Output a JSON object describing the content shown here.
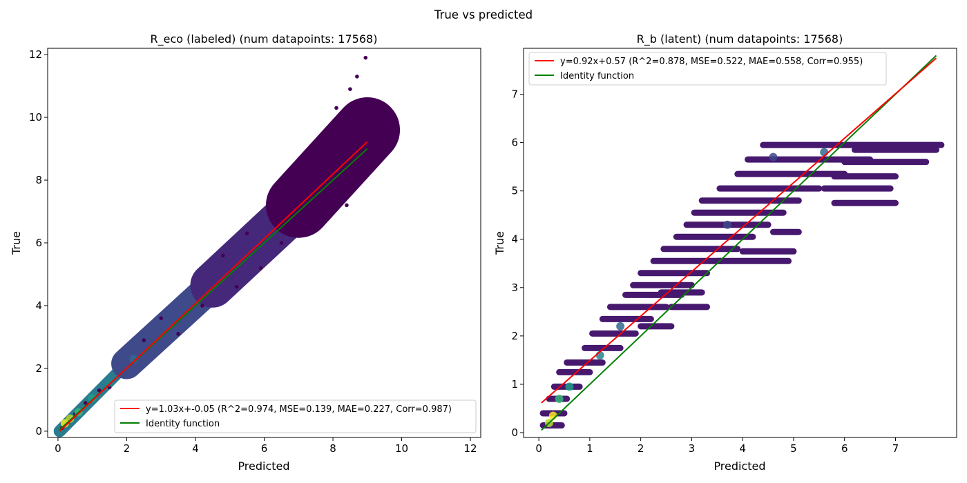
{
  "figure": {
    "suptitle": "True vs predicted"
  },
  "colors": {
    "fit_line": "#ff0000",
    "identity_line": "#008000",
    "viridis": [
      "#440154",
      "#482878",
      "#3e4989",
      "#31688e",
      "#26828e",
      "#1f9e89",
      "#35b779",
      "#6ece58",
      "#b5de2b",
      "#fde725"
    ]
  },
  "chart_data": [
    {
      "type": "scatter",
      "title": "R_eco (labeled) (num datapoints: 17568)",
      "xlabel": "Predicted",
      "ylabel": "True",
      "xlim": [
        -0.3,
        12.3
      ],
      "ylim": [
        -0.2,
        12.2
      ],
      "xticks": [
        0,
        2,
        4,
        6,
        8,
        10,
        12
      ],
      "yticks": [
        0,
        2,
        4,
        6,
        8,
        10,
        12
      ],
      "x_range": [
        0.05,
        9.0
      ],
      "fit": {
        "slope": 1.03,
        "intercept": -0.05
      },
      "legend": {
        "position": "lower right",
        "entries": [
          {
            "label": "y=1.03x+-0.05 (R^2=0.974, MSE=0.139, MAE=0.227, Corr=0.987)",
            "series": "fit"
          },
          {
            "label": "Identity function",
            "series": "identity"
          }
        ]
      },
      "bands": [
        {
          "x0": 0.05,
          "y0": 0.0,
          "x1": 2.0,
          "y1": 2.15,
          "width": 0.35,
          "color": "#2a7b8e"
        },
        {
          "x0": 2.0,
          "y0": 2.15,
          "x1": 4.5,
          "y1": 4.65,
          "width": 0.9,
          "color": "#3f4a8a"
        },
        {
          "x0": 4.5,
          "y0": 4.65,
          "x1": 7.0,
          "y1": 7.2,
          "width": 1.3,
          "color": "#45287a"
        },
        {
          "x0": 7.0,
          "y0": 7.2,
          "x1": 9.0,
          "y1": 9.6,
          "width": 1.9,
          "color": "#440154"
        }
      ],
      "scatter_points": [
        [
          0.12,
          0.1
        ],
        [
          0.3,
          0.45
        ],
        [
          0.5,
          0.55
        ],
        [
          0.8,
          0.9
        ],
        [
          1.2,
          1.3
        ],
        [
          1.5,
          1.4
        ],
        [
          2.5,
          2.9
        ],
        [
          3.0,
          3.6
        ],
        [
          3.5,
          3.1
        ],
        [
          4.2,
          4.0
        ],
        [
          4.8,
          5.6
        ],
        [
          5.2,
          4.6
        ],
        [
          5.5,
          6.3
        ],
        [
          5.9,
          5.2
        ],
        [
          6.2,
          7.1
        ],
        [
          6.5,
          6.0
        ],
        [
          6.8,
          7.8
        ],
        [
          7.0,
          6.5
        ],
        [
          7.2,
          8.4
        ],
        [
          7.4,
          6.8
        ],
        [
          7.6,
          8.8
        ],
        [
          7.8,
          7.3
        ],
        [
          7.9,
          9.7
        ],
        [
          8.0,
          8.1
        ],
        [
          8.1,
          10.3
        ],
        [
          8.2,
          7.6
        ],
        [
          8.3,
          9.3
        ],
        [
          8.4,
          7.2
        ],
        [
          8.5,
          10.9
        ],
        [
          8.6,
          9.0
        ],
        [
          8.7,
          11.3
        ],
        [
          8.8,
          8.5
        ],
        [
          8.9,
          10.4
        ],
        [
          8.95,
          11.9
        ],
        [
          9.0,
          10.0
        ],
        [
          8.97,
          8.8
        ],
        [
          8.45,
          9.9
        ],
        [
          8.05,
          9.5
        ],
        [
          7.6,
          8.1
        ],
        [
          8.65,
          8.2
        ]
      ],
      "hotspots": [
        {
          "x": 0.2,
          "y": 0.25,
          "color": "#fde725"
        },
        {
          "x": 0.35,
          "y": 0.4,
          "color": "#b5de2b"
        },
        {
          "x": 0.6,
          "y": 0.6,
          "color": "#35b779"
        },
        {
          "x": 1.0,
          "y": 1.05,
          "color": "#1f9e89"
        },
        {
          "x": 1.5,
          "y": 1.55,
          "color": "#26828e"
        },
        {
          "x": 2.2,
          "y": 2.3,
          "color": "#31688e"
        }
      ]
    },
    {
      "type": "scatter",
      "title": "R_b (latent) (num datapoints: 17568)",
      "xlabel": "Predicted",
      "ylabel": "True",
      "xlim": [
        -0.3,
        8.2
      ],
      "ylim": [
        -0.1,
        7.95
      ],
      "xticks": [
        0,
        1,
        2,
        3,
        4,
        5,
        6,
        7
      ],
      "yticks": [
        0,
        1,
        2,
        3,
        4,
        5,
        6,
        7
      ],
      "x_range": [
        0.05,
        7.8
      ],
      "fit": {
        "slope": 0.92,
        "intercept": 0.57
      },
      "legend": {
        "position": "upper left",
        "entries": [
          {
            "label": "y=0.92x+0.57 (R^2=0.878, MSE=0.522, MAE=0.558, Corr=0.955)",
            "series": "fit"
          },
          {
            "label": "Identity function",
            "series": "identity"
          }
        ]
      },
      "stripes": [
        {
          "y": 0.15,
          "x0": 0.08,
          "x1": 0.45
        },
        {
          "y": 0.4,
          "x0": 0.08,
          "x1": 0.5
        },
        {
          "y": 0.7,
          "x0": 0.2,
          "x1": 0.55
        },
        {
          "y": 0.95,
          "x0": 0.3,
          "x1": 0.8
        },
        {
          "y": 1.25,
          "x0": 0.4,
          "x1": 1.0
        },
        {
          "y": 1.45,
          "x0": 0.55,
          "x1": 1.25
        },
        {
          "y": 1.75,
          "x0": 0.9,
          "x1": 1.6
        },
        {
          "y": 2.05,
          "x0": 1.05,
          "x1": 1.9
        },
        {
          "y": 2.35,
          "x0": 1.25,
          "x1": 2.2
        },
        {
          "y": 2.6,
          "x0": 1.4,
          "x1": 2.5
        },
        {
          "y": 2.85,
          "x0": 1.7,
          "x1": 2.8
        },
        {
          "y": 3.05,
          "x0": 1.85,
          "x1": 3.0
        },
        {
          "y": 3.3,
          "x0": 2.0,
          "x1": 3.3
        },
        {
          "y": 3.55,
          "x0": 2.25,
          "x1": 3.6
        },
        {
          "y": 3.8,
          "x0": 2.45,
          "x1": 3.9
        },
        {
          "y": 4.05,
          "x0": 2.7,
          "x1": 4.2
        },
        {
          "y": 4.3,
          "x0": 2.9,
          "x1": 4.5
        },
        {
          "y": 4.55,
          "x0": 3.05,
          "x1": 4.8
        },
        {
          "y": 4.8,
          "x0": 3.2,
          "x1": 5.1
        },
        {
          "y": 5.05,
          "x0": 3.55,
          "x1": 5.5
        },
        {
          "y": 5.35,
          "x0": 3.9,
          "x1": 6.0
        },
        {
          "y": 5.65,
          "x0": 4.1,
          "x1": 6.5
        },
        {
          "y": 5.95,
          "x0": 4.4,
          "x1": 7.9
        }
      ],
      "extra_stripes": [
        {
          "y": 4.75,
          "x0": 5.8,
          "x1": 7.0
        },
        {
          "y": 5.05,
          "x0": 5.6,
          "x1": 6.9
        },
        {
          "y": 5.3,
          "x0": 5.8,
          "x1": 7.0
        },
        {
          "y": 5.6,
          "x0": 6.0,
          "x1": 7.6
        },
        {
          "y": 5.85,
          "x0": 6.2,
          "x1": 7.8
        },
        {
          "y": 4.15,
          "x0": 4.6,
          "x1": 5.1
        },
        {
          "y": 3.75,
          "x0": 4.0,
          "x1": 5.0
        },
        {
          "y": 3.55,
          "x0": 3.5,
          "x1": 4.9
        },
        {
          "y": 2.6,
          "x0": 2.6,
          "x1": 3.3
        },
        {
          "y": 2.9,
          "x0": 2.4,
          "x1": 3.2
        },
        {
          "y": 2.2,
          "x0": 2.0,
          "x1": 2.6
        }
      ],
      "hotspots": [
        {
          "x": 0.2,
          "y": 0.2,
          "color": "#b5de2b"
        },
        {
          "x": 0.28,
          "y": 0.35,
          "color": "#fde725"
        },
        {
          "x": 0.4,
          "y": 0.7,
          "color": "#35b779"
        },
        {
          "x": 0.6,
          "y": 0.95,
          "color": "#1f9e89"
        },
        {
          "x": 1.2,
          "y": 1.6,
          "color": "#26828e"
        },
        {
          "x": 1.6,
          "y": 2.2,
          "color": "#31688e"
        },
        {
          "x": 4.6,
          "y": 5.7,
          "color": "#3e4989"
        },
        {
          "x": 5.6,
          "y": 5.8,
          "color": "#31688e"
        },
        {
          "x": 3.7,
          "y": 4.3,
          "color": "#3e4989"
        }
      ]
    }
  ]
}
